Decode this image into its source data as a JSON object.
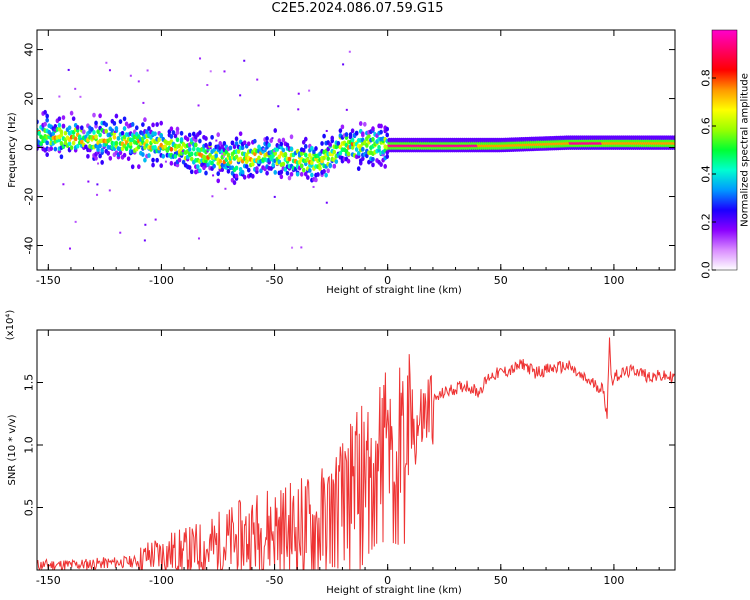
{
  "title": "C2E5.2024.086.07.59.G15",
  "chart_data": [
    {
      "type": "heatmap",
      "xlabel": "Height of straight line (km)",
      "ylabel": "Frequency (Hz)",
      "xlim": [
        -155,
        127
      ],
      "ylim": [
        -50,
        48
      ],
      "xticks": [
        -150,
        -100,
        -50,
        0,
        50,
        100
      ],
      "yticks": [
        -40,
        -20,
        0,
        20,
        40
      ],
      "colorbar": {
        "label": "Normalized spectral amplitude",
        "range": [
          0.0,
          1.0
        ],
        "ticks": [
          0.0,
          0.2,
          0.4,
          0.6,
          0.8
        ],
        "colors": [
          "#ffffff",
          "#d98cff",
          "#8a00ff",
          "#1a00ff",
          "#0099ff",
          "#00ffd0",
          "#00ff33",
          "#99ff00",
          "#ffff00",
          "#ff9900",
          "#ff0000",
          "#ff0066",
          "#ff00cc"
        ]
      },
      "ridge": {
        "x": [
          -155,
          -140,
          -120,
          -100,
          -80,
          -70,
          -60,
          -50,
          -40,
          -30,
          -25,
          -20,
          -10,
          0,
          10,
          20,
          50,
          80,
          100,
          127
        ],
        "freq": [
          5,
          4,
          3,
          1,
          -3,
          -5,
          -4,
          -3,
          -5,
          -6,
          -3,
          1,
          1,
          1,
          1,
          1,
          1,
          2,
          2,
          2
        ]
      }
    },
    {
      "type": "line",
      "xlabel": "Height of straight line (km)",
      "ylabel": "SNR (10 * v/v)",
      "multiplier": "(x10⁴)",
      "xlim": [
        -155,
        127
      ],
      "ylim": [
        0,
        1.92
      ],
      "xticks": [
        -150,
        -100,
        -50,
        0,
        50,
        100
      ],
      "yticks": [
        0.5,
        1.0,
        1.5
      ],
      "ytick_labels": [
        "0.5",
        "1.0",
        "1.5"
      ],
      "color": "#ee3333",
      "series": [
        {
          "x": [
            -155,
            -140,
            -130,
            -120,
            -110,
            -105,
            -100,
            -95,
            -90,
            -85,
            -80,
            -75,
            -70,
            -65,
            -60,
            -55,
            -50,
            -45,
            -40,
            -35,
            -30,
            -25,
            -20,
            -18,
            -15,
            -12,
            -10,
            -5,
            0,
            5,
            10,
            15,
            20,
            25,
            30,
            35,
            40,
            45,
            50,
            55,
            60,
            65,
            70,
            75,
            80,
            85,
            90,
            95,
            97,
            98,
            99,
            100,
            105,
            110,
            115,
            120,
            127
          ],
          "y": [
            0.04,
            0.04,
            0.05,
            0.06,
            0.07,
            0.12,
            0.12,
            0.14,
            0.13,
            0.15,
            0.16,
            0.2,
            0.22,
            0.24,
            0.28,
            0.3,
            0.33,
            0.3,
            0.32,
            0.33,
            0.35,
            0.45,
            0.55,
            0.6,
            0.8,
            0.75,
            0.85,
            1.0,
            1.05,
            1.05,
            1.1,
            1.2,
            1.35,
            1.42,
            1.45,
            1.48,
            1.42,
            1.55,
            1.58,
            1.6,
            1.65,
            1.58,
            1.6,
            1.62,
            1.63,
            1.55,
            1.5,
            1.45,
            1.25,
            1.85,
            1.5,
            1.55,
            1.58,
            1.6,
            1.55,
            1.55,
            1.54
          ]
        }
      ]
    }
  ]
}
